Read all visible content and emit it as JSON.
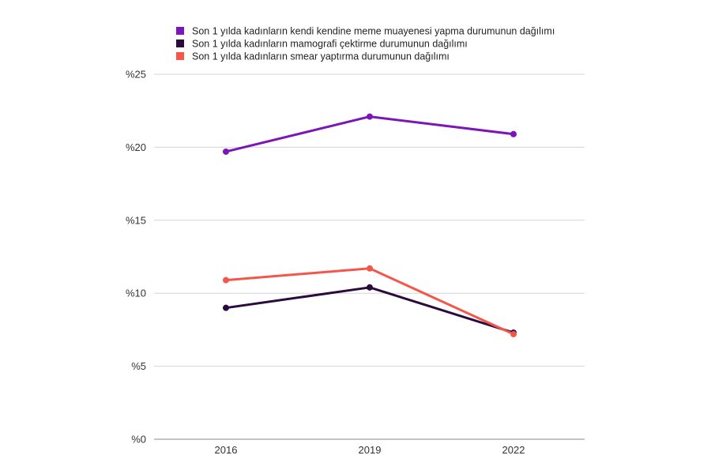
{
  "chart_data": {
    "type": "line",
    "title": "",
    "xlabel": "",
    "ylabel": "",
    "categories": [
      "2016",
      "2019",
      "2022"
    ],
    "ylim": [
      0,
      25
    ],
    "yticks": [
      0,
      5,
      10,
      15,
      20,
      25
    ],
    "ytick_labels": [
      "%0",
      "%5",
      "%10",
      "%15",
      "%20",
      "%25"
    ],
    "grid": true,
    "legend_position": "top",
    "series": [
      {
        "name": "Son 1 yılda kadınların kendi kendine meme muayenesi yapma durumunun dağılımı",
        "color": "#7B16B8",
        "values": [
          19.7,
          22.1,
          20.9
        ]
      },
      {
        "name": "Son 1 yılda kadınların mamografi çektirme durumunun dağılımı",
        "color": "#2B0A3D",
        "values": [
          9.0,
          10.4,
          7.3
        ]
      },
      {
        "name": "Son 1 yılda kadınların smear yaptırma durumunun dağılımı",
        "color": "#F4574A",
        "values": [
          10.9,
          11.7,
          7.2
        ]
      }
    ]
  }
}
